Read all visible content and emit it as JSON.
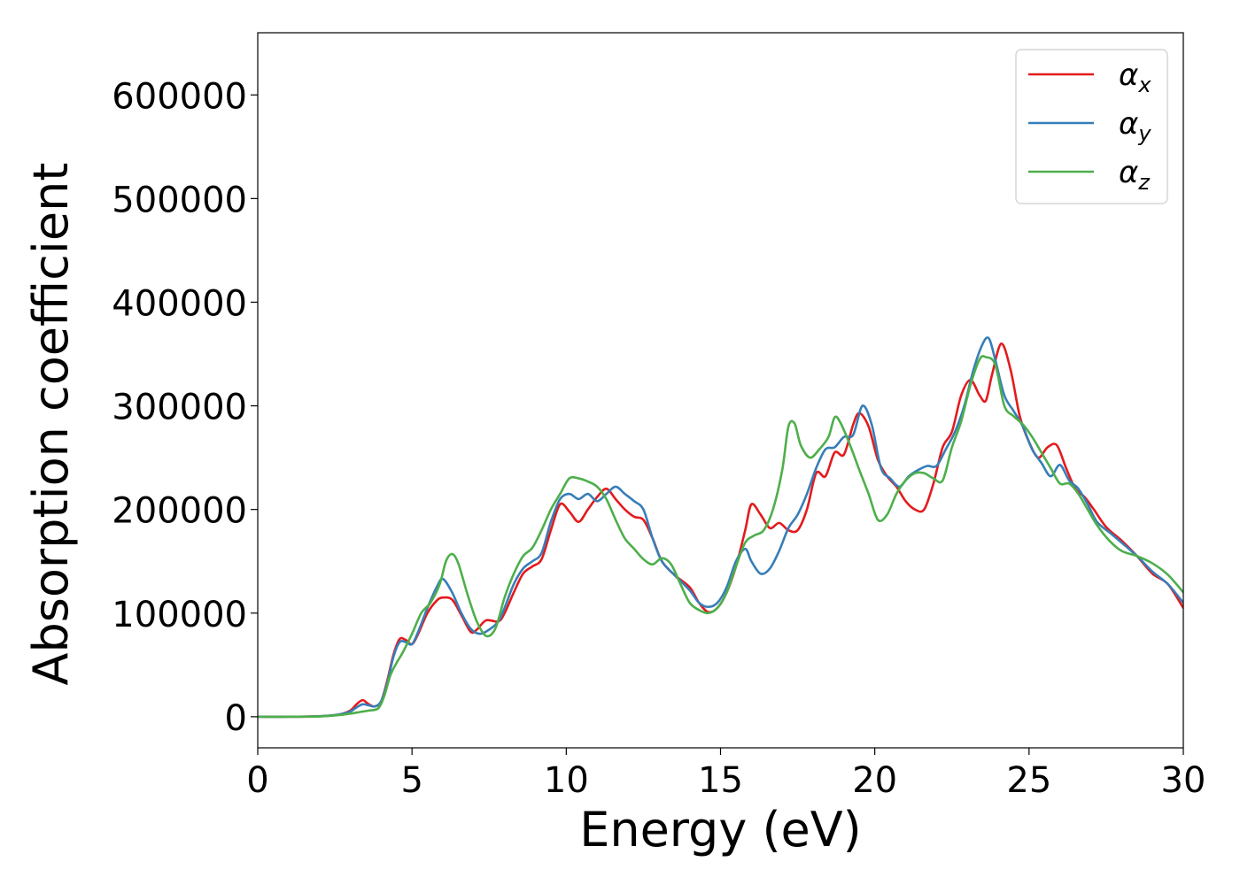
{
  "chart_data": {
    "type": "line",
    "title": "",
    "xlabel": "Energy (eV)",
    "ylabel": "Absorption coefficient",
    "xlim": [
      0,
      30
    ],
    "ylim": [
      -30000,
      660000
    ],
    "xticks": [
      0,
      5,
      10,
      15,
      20,
      25,
      30
    ],
    "yticks": [
      0,
      100000,
      200000,
      300000,
      400000,
      500000,
      600000
    ],
    "grid": false,
    "legend_position": "top-right",
    "series": [
      {
        "name": "α_x",
        "legend_base": "α",
        "legend_sub": "x",
        "color": "#e41a1c",
        "x": [
          0,
          1,
          2,
          2.6,
          3.0,
          3.2,
          3.4,
          3.6,
          3.8,
          4.0,
          4.2,
          4.4,
          4.6,
          4.8,
          5.0,
          5.2,
          5.5,
          5.8,
          6.0,
          6.3,
          6.6,
          6.9,
          7.1,
          7.4,
          7.8,
          8.0,
          8.3,
          8.6,
          8.9,
          9.2,
          9.5,
          9.8,
          10.1,
          10.4,
          10.7,
          11.0,
          11.3,
          11.6,
          11.9,
          12.2,
          12.5,
          12.8,
          13.1,
          13.5,
          14.0,
          14.3,
          14.6,
          14.9,
          15.2,
          15.5,
          15.8,
          16.0,
          16.3,
          16.6,
          16.9,
          17.2,
          17.5,
          17.8,
          18.1,
          18.4,
          18.7,
          19.0,
          19.3,
          19.5,
          19.8,
          20.1,
          20.4,
          20.7,
          21.0,
          21.3,
          21.6,
          21.9,
          22.2,
          22.5,
          22.8,
          23.1,
          23.4,
          23.6,
          23.8,
          24.1,
          24.4,
          24.7,
          25.0,
          25.3,
          25.6,
          25.9,
          26.2,
          26.5,
          26.8,
          27.1,
          27.5,
          28.0,
          28.5,
          29.0,
          29.5,
          30.0
        ],
        "y": [
          0,
          0,
          500,
          2000,
          6000,
          12000,
          16000,
          12000,
          10000,
          15000,
          35000,
          60000,
          75000,
          74000,
          70000,
          80000,
          100000,
          112000,
          115000,
          113000,
          98000,
          82000,
          84000,
          93000,
          92000,
          100000,
          120000,
          138000,
          145000,
          152000,
          180000,
          205000,
          198000,
          188000,
          200000,
          212000,
          220000,
          210000,
          200000,
          193000,
          190000,
          172000,
          150000,
          137000,
          125000,
          110000,
          101000,
          105000,
          120000,
          145000,
          180000,
          205000,
          195000,
          182000,
          187000,
          180000,
          180000,
          200000,
          235000,
          232000,
          255000,
          253000,
          282000,
          293000,
          280000,
          248000,
          232000,
          222000,
          208000,
          200000,
          200000,
          225000,
          260000,
          275000,
          310000,
          325000,
          310000,
          305000,
          330000,
          360000,
          335000,
          290000,
          265000,
          250000,
          260000,
          262000,
          240000,
          220000,
          212000,
          200000,
          183000,
          170000,
          155000,
          138000,
          128000,
          105000
        ]
      },
      {
        "name": "α_y",
        "legend_base": "α",
        "legend_sub": "y",
        "color": "#377eb8",
        "x": [
          0,
          1,
          2,
          2.6,
          3.0,
          3.2,
          3.4,
          3.6,
          3.8,
          4.0,
          4.2,
          4.4,
          4.6,
          4.8,
          5.0,
          5.2,
          5.5,
          5.8,
          6.0,
          6.3,
          6.6,
          6.9,
          7.2,
          7.5,
          7.8,
          8.0,
          8.3,
          8.6,
          8.9,
          9.2,
          9.5,
          9.8,
          10.1,
          10.4,
          10.7,
          11.0,
          11.3,
          11.6,
          11.9,
          12.2,
          12.5,
          12.8,
          13.1,
          13.5,
          14.0,
          14.3,
          14.6,
          14.9,
          15.2,
          15.5,
          15.8,
          16.0,
          16.3,
          16.6,
          16.9,
          17.2,
          17.5,
          17.8,
          18.1,
          18.4,
          18.7,
          19.0,
          19.3,
          19.6,
          19.9,
          20.2,
          20.5,
          20.8,
          21.1,
          21.4,
          21.7,
          22.0,
          22.3,
          22.6,
          22.9,
          23.2,
          23.5,
          23.7,
          23.9,
          24.2,
          24.5,
          24.8,
          25.1,
          25.4,
          25.7,
          26.0,
          26.3,
          26.6,
          26.9,
          27.2,
          27.6,
          28.0,
          28.5,
          29.0,
          29.5,
          30.0
        ],
        "y": [
          0,
          0,
          500,
          2000,
          5000,
          9000,
          12000,
          11000,
          10000,
          15000,
          33000,
          58000,
          72000,
          72000,
          70000,
          82000,
          105000,
          125000,
          133000,
          120000,
          100000,
          85000,
          80000,
          84000,
          92000,
          105000,
          128000,
          143000,
          150000,
          158000,
          188000,
          210000,
          215000,
          210000,
          215000,
          208000,
          215000,
          222000,
          215000,
          208000,
          200000,
          172000,
          150000,
          137000,
          122000,
          110000,
          106000,
          110000,
          125000,
          150000,
          162000,
          150000,
          138000,
          143000,
          160000,
          182000,
          195000,
          215000,
          240000,
          258000,
          260000,
          270000,
          272000,
          300000,
          282000,
          240000,
          230000,
          222000,
          232000,
          238000,
          242000,
          242000,
          258000,
          275000,
          300000,
          335000,
          360000,
          365000,
          345000,
          310000,
          295000,
          280000,
          258000,
          245000,
          232000,
          243000,
          228000,
          220000,
          205000,
          188000,
          178000,
          168000,
          155000,
          140000,
          128000,
          110000
        ]
      },
      {
        "name": "α_z",
        "legend_base": "α",
        "legend_sub": "z",
        "color": "#4daf4a",
        "x": [
          0,
          1,
          2,
          2.6,
          3.0,
          3.3,
          3.6,
          3.9,
          4.1,
          4.3,
          4.5,
          4.7,
          5.0,
          5.3,
          5.6,
          5.9,
          6.1,
          6.3,
          6.5,
          6.8,
          7.1,
          7.4,
          7.7,
          8.0,
          8.3,
          8.6,
          8.9,
          9.2,
          9.5,
          9.8,
          10.1,
          10.4,
          10.7,
          11.0,
          11.3,
          11.6,
          11.9,
          12.2,
          12.5,
          12.8,
          13.1,
          13.4,
          13.7,
          14.0,
          14.3,
          14.6,
          14.9,
          15.2,
          15.5,
          15.8,
          16.1,
          16.4,
          16.7,
          17.0,
          17.2,
          17.4,
          17.6,
          17.9,
          18.2,
          18.5,
          18.7,
          18.9,
          19.2,
          19.5,
          19.8,
          20.1,
          20.4,
          20.7,
          21.0,
          21.3,
          21.6,
          21.9,
          22.2,
          22.5,
          22.8,
          23.1,
          23.4,
          23.6,
          23.9,
          24.2,
          24.5,
          24.8,
          25.1,
          25.4,
          25.7,
          26.0,
          26.3,
          26.6,
          26.9,
          27.2,
          27.6,
          28.0,
          28.5,
          29.0,
          29.5,
          30.0
        ],
        "y": [
          0,
          0,
          300,
          1500,
          3000,
          4500,
          6000,
          8000,
          20000,
          40000,
          52000,
          62000,
          80000,
          100000,
          110000,
          128000,
          150000,
          157000,
          148000,
          118000,
          92000,
          78000,
          85000,
          115000,
          138000,
          155000,
          163000,
          180000,
          200000,
          215000,
          230000,
          230000,
          227000,
          222000,
          210000,
          190000,
          172000,
          162000,
          152000,
          147000,
          153000,
          147000,
          128000,
          110000,
          103000,
          100000,
          105000,
          120000,
          145000,
          168000,
          175000,
          180000,
          200000,
          238000,
          280000,
          283000,
          262000,
          250000,
          258000,
          270000,
          289000,
          283000,
          262000,
          238000,
          215000,
          190000,
          195000,
          215000,
          228000,
          235000,
          235000,
          230000,
          228000,
          260000,
          285000,
          320000,
          345000,
          347000,
          340000,
          300000,
          290000,
          282000,
          270000,
          255000,
          240000,
          225000,
          225000,
          215000,
          200000,
          185000,
          170000,
          160000,
          155000,
          148000,
          137000,
          120000
        ]
      }
    ]
  }
}
